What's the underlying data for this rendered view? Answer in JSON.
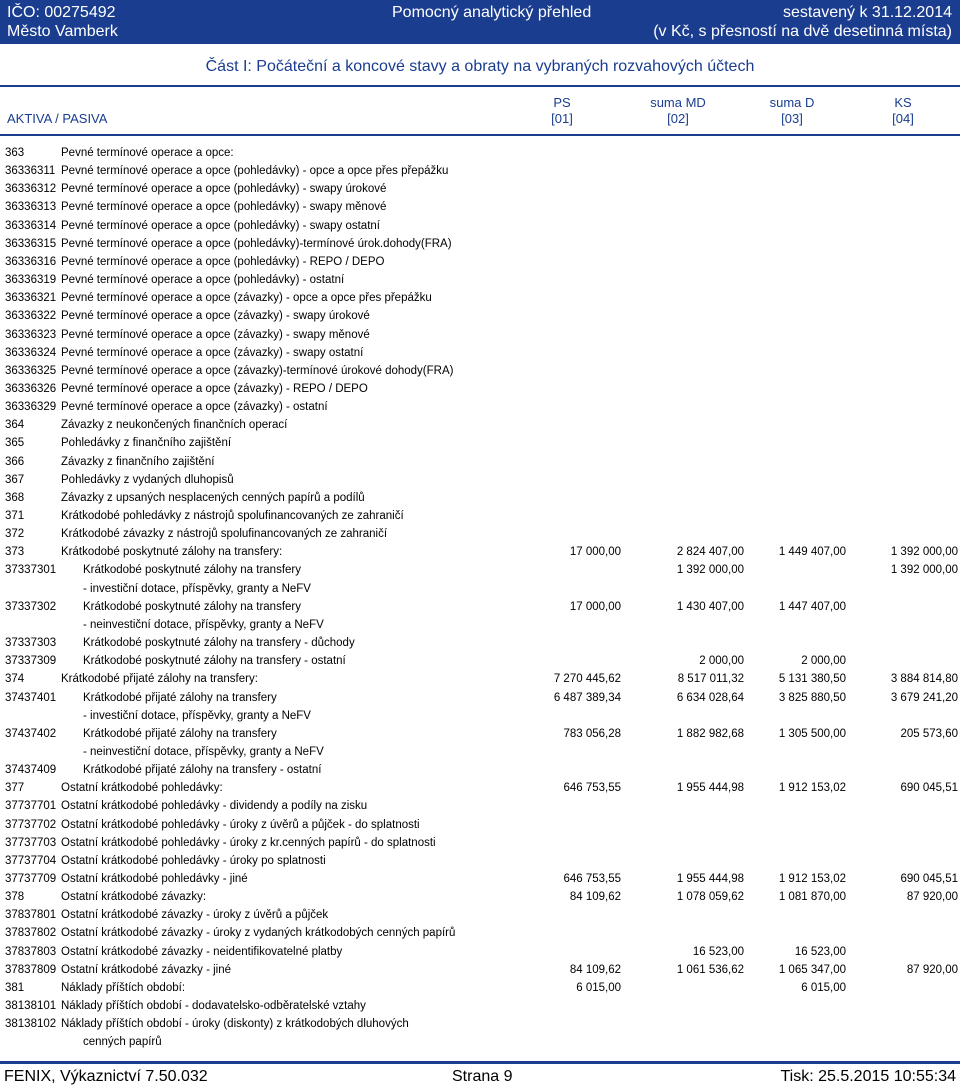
{
  "header": {
    "ico": "IČO: 00275492",
    "town": "Město Vamberk",
    "title": "Pomocný analytický přehled",
    "built": "sestavený k 31.12.2014",
    "units": "(v Kč, s přesností na dvě desetinná místa)"
  },
  "section_title": "Část I: Počáteční a koncové stavy a obraty na vybraných rozvahových účtech",
  "columns": {
    "aktiva": "AKTIVA / PASIVA",
    "ps": "PS",
    "ps_code": "[01]",
    "md": "suma MD",
    "md_code": "[02]",
    "d": "suma D",
    "d_code": "[03]",
    "ks": "KS",
    "ks_code": "[04]"
  },
  "rows": [
    {
      "code": "363",
      "text": "Pevné termínové operace a opce:"
    },
    {
      "code": "36336311",
      "text": "Pevné termínové operace a opce (pohledávky) - opce a opce přes přepážku"
    },
    {
      "code": "36336312",
      "text": "Pevné termínové operace a opce (pohledávky) - swapy úrokové"
    },
    {
      "code": "36336313",
      "text": "Pevné termínové operace a opce (pohledávky) - swapy měnové"
    },
    {
      "code": "36336314",
      "text": "Pevné termínové operace a opce (pohledávky) - swapy ostatní"
    },
    {
      "code": "36336315",
      "text": "Pevné termínové operace a opce (pohledávky)-termínové úrok.dohody(FRA)"
    },
    {
      "code": "36336316",
      "text": "Pevné termínové operace a opce (pohledávky) - REPO / DEPO"
    },
    {
      "code": "36336319",
      "text": "Pevné termínové operace a opce (pohledávky) - ostatní"
    },
    {
      "code": "36336321",
      "text": "Pevné termínové operace a opce (závazky) - opce a opce přes přepážku"
    },
    {
      "code": "36336322",
      "text": "Pevné termínové operace a opce (závazky) - swapy úrokové"
    },
    {
      "code": "36336323",
      "text": "Pevné termínové operace a opce (závazky) - swapy měnové"
    },
    {
      "code": "36336324",
      "text": "Pevné termínové operace a opce (závazky) - swapy ostatní"
    },
    {
      "code": "36336325",
      "text": "Pevné termínové operace a opce (závazky)-termínové úrokové dohody(FRA)"
    },
    {
      "code": "36336326",
      "text": "Pevné termínové operace a opce (závazky) - REPO / DEPO"
    },
    {
      "code": "36336329",
      "text": "Pevné termínové operace a opce (závazky) - ostatní"
    },
    {
      "code": "364",
      "text": "Závazky z neukončených finančních operací"
    },
    {
      "code": "365",
      "text": "Pohledávky z finančního zajištění"
    },
    {
      "code": "366",
      "text": "Závazky z finančního zajištění"
    },
    {
      "code": "367",
      "text": "Pohledávky z vydaných dluhopisů"
    },
    {
      "code": "368",
      "text": "Závazky z upsaných nesplacených cenných papírů a podílů"
    },
    {
      "code": "371",
      "text": "Krátkodobé pohledávky z nástrojů spolufinancovaných ze zahraničí"
    },
    {
      "code": "372",
      "text": "Krátkodobé závazky z nástrojů spolufinancovaných ze zahraničí"
    },
    {
      "code": "373",
      "text": "Krátkodobé poskytnuté zálohy na transfery:",
      "v1": "17 000,00",
      "v2": "2 824 407,00",
      "v3": "1 449 407,00",
      "v4": "1 392 000,00"
    },
    {
      "code": "37337301",
      "text": "Krátkodobé poskytnuté zálohy na transfery",
      "sub": true,
      "v2": "1 392 000,00",
      "v4": "1 392 000,00"
    },
    {
      "code": "",
      "text": "- investiční dotace, příspěvky, granty a NeFV",
      "sub": true
    },
    {
      "code": "37337302",
      "text": "Krátkodobé poskytnuté zálohy na transfery",
      "sub": true,
      "v1": "17 000,00",
      "v2": "1 430 407,00",
      "v3": "1 447 407,00"
    },
    {
      "code": "",
      "text": "- neinvestiční dotace, příspěvky, granty a NeFV",
      "sub": true
    },
    {
      "code": "37337303",
      "text": "Krátkodobé poskytnuté zálohy na transfery - důchody",
      "sub": true
    },
    {
      "code": "37337309",
      "text": "Krátkodobé poskytnuté zálohy na transfery - ostatní",
      "sub": true,
      "v2": "2 000,00",
      "v3": "2 000,00"
    },
    {
      "code": "374",
      "text": "Krátkodobé přijaté zálohy na transfery:",
      "v1": "7 270 445,62",
      "v2": "8 517 011,32",
      "v3": "5 131 380,50",
      "v4": "3 884 814,80"
    },
    {
      "code": "37437401",
      "text": "Krátkodobé přijaté zálohy na transfery",
      "sub": true,
      "v1": "6 487 389,34",
      "v2": "6 634 028,64",
      "v3": "3 825 880,50",
      "v4": "3 679 241,20"
    },
    {
      "code": "",
      "text": "- investiční dotace, příspěvky, granty a NeFV",
      "sub": true
    },
    {
      "code": "37437402",
      "text": "Krátkodobé přijaté zálohy na transfery",
      "sub": true,
      "v1": "783 056,28",
      "v2": "1 882 982,68",
      "v3": "1 305 500,00",
      "v4": "205 573,60"
    },
    {
      "code": "",
      "text": "- neinvestiční dotace, příspěvky, granty a NeFV",
      "sub": true
    },
    {
      "code": "37437409",
      "text": "Krátkodobé přijaté zálohy na transfery - ostatní",
      "sub": true
    },
    {
      "code": "377",
      "text": "Ostatní krátkodobé pohledávky:",
      "v1": "646 753,55",
      "v2": "1 955 444,98",
      "v3": "1 912 153,02",
      "v4": "690 045,51"
    },
    {
      "code": "37737701",
      "text": "Ostatní krátkodobé pohledávky - dividendy a podíly na zisku"
    },
    {
      "code": "37737702",
      "text": "Ostatní krátkodobé pohledávky - úroky z úvěrů a půjček - do splatnosti"
    },
    {
      "code": "37737703",
      "text": "Ostatní krátkodobé pohledávky - úroky z kr.cenných papírů - do splatnosti"
    },
    {
      "code": "37737704",
      "text": "Ostatní krátkodobé pohledávky - úroky po splatnosti"
    },
    {
      "code": "37737709",
      "text": "Ostatní krátkodobé pohledávky - jiné",
      "v1": "646 753,55",
      "v2": "1 955 444,98",
      "v3": "1 912 153,02",
      "v4": "690 045,51"
    },
    {
      "code": "378",
      "text": "Ostatní krátkodobé závazky:",
      "v1": "84 109,62",
      "v2": "1 078 059,62",
      "v3": "1 081 870,00",
      "v4": "87 920,00"
    },
    {
      "code": "37837801",
      "text": "Ostatní krátkodobé závazky - úroky z úvěrů a půjček"
    },
    {
      "code": "37837802",
      "text": "Ostatní krátkodobé závazky - úroky z vydaných krátkodobých cenných papírů"
    },
    {
      "code": "37837803",
      "text": "Ostatní krátkodobé závazky - neidentifikovatelné platby",
      "v2": "16 523,00",
      "v3": "16 523,00"
    },
    {
      "code": "37837809",
      "text": "Ostatní krátkodobé závazky - jiné",
      "v1": "84 109,62",
      "v2": "1 061 536,62",
      "v3": "1 065 347,00",
      "v4": "87 920,00"
    },
    {
      "code": "381",
      "text": "Náklady příštích období:",
      "v1": "6 015,00",
      "v3": "6 015,00"
    },
    {
      "code": "38138101",
      "text": "Náklady příštích období - dodavatelsko-odběratelské vztahy"
    },
    {
      "code": "38138102",
      "text": "Náklady příštích období - úroky (diskonty) z krátkodobých dluhových"
    },
    {
      "code": "",
      "text": "cenných papírů",
      "sub": true
    }
  ],
  "footer": {
    "left": "FENIX, Výkaznictví 7.50.032",
    "mid": "Strana 9",
    "right": "Tisk: 25.5.2015 10:55:34"
  }
}
